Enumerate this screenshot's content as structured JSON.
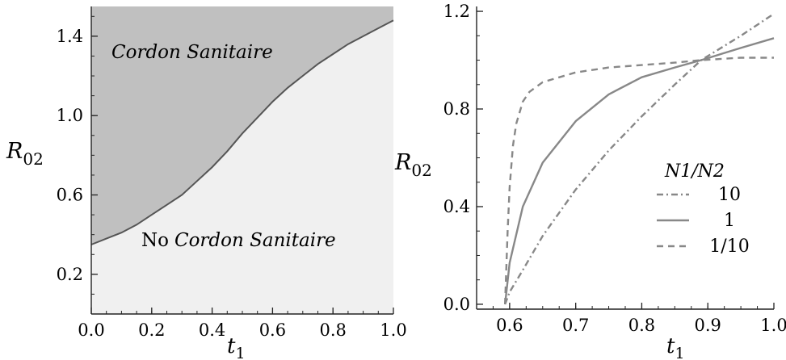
{
  "chart_data": [
    {
      "type": "area",
      "xlabel": "t",
      "xlabel_sub": "1",
      "ylabel": "R",
      "ylabel_sub": "02",
      "xlim": [
        0.0,
        1.0
      ],
      "ylim": [
        0.0,
        1.55
      ],
      "xticks": [
        "0.0",
        "0.2",
        "0.4",
        "0.6",
        "0.8",
        "1.0"
      ],
      "yticks": [
        "0.2",
        "0.6",
        "1.0",
        "1.4"
      ],
      "grid": false,
      "regions": [
        {
          "label": "Cordon Sanitaire",
          "fill": "#c0c0c0"
        },
        {
          "label_plain": "No",
          "label_italic": "Cordon Sanitaire",
          "fill": "#f0f0f0"
        }
      ],
      "boundary": {
        "color": "#555555",
        "x": [
          0.0,
          0.05,
          0.1,
          0.15,
          0.2,
          0.25,
          0.3,
          0.35,
          0.4,
          0.45,
          0.5,
          0.55,
          0.6,
          0.65,
          0.7,
          0.75,
          0.8,
          0.85,
          0.9,
          0.95,
          1.0
        ],
        "y": [
          0.35,
          0.38,
          0.41,
          0.45,
          0.5,
          0.55,
          0.6,
          0.67,
          0.74,
          0.82,
          0.91,
          0.99,
          1.07,
          1.14,
          1.2,
          1.26,
          1.31,
          1.36,
          1.4,
          1.44,
          1.48
        ]
      }
    },
    {
      "type": "line",
      "xlabel": "t",
      "xlabel_sub": "1",
      "ylabel": "R",
      "ylabel_sub": "02",
      "xlim": [
        0.55,
        1.0
      ],
      "ylim": [
        -0.02,
        1.22
      ],
      "xticks": [
        "0.6",
        "0.7",
        "0.8",
        "0.9",
        "1.0"
      ],
      "yticks": [
        "0.0",
        "0.4",
        "0.8",
        "1.2"
      ],
      "grid": false,
      "legend_title": "N1/N2",
      "legend_placement": "right",
      "series": [
        {
          "name": "10",
          "style": "dashdot",
          "color": "#888888",
          "x": [
            0.593,
            0.6,
            0.62,
            0.65,
            0.7,
            0.75,
            0.8,
            0.85,
            0.89,
            0.95,
            1.0
          ],
          "y": [
            0.0,
            0.05,
            0.14,
            0.28,
            0.47,
            0.63,
            0.77,
            0.9,
            1.0,
            1.1,
            1.19
          ]
        },
        {
          "name": "1",
          "style": "solid",
          "color": "#888888",
          "x": [
            0.593,
            0.6,
            0.62,
            0.65,
            0.7,
            0.75,
            0.8,
            0.85,
            0.89,
            0.95,
            1.0
          ],
          "y": [
            0.0,
            0.17,
            0.4,
            0.58,
            0.75,
            0.86,
            0.93,
            0.97,
            1.0,
            1.05,
            1.09
          ]
        },
        {
          "name": "1/10",
          "style": "dashed",
          "color": "#888888",
          "x": [
            0.593,
            0.597,
            0.6,
            0.605,
            0.61,
            0.62,
            0.63,
            0.65,
            0.7,
            0.75,
            0.8,
            0.85,
            0.89,
            0.95,
            1.0
          ],
          "y": [
            0.0,
            0.3,
            0.48,
            0.65,
            0.74,
            0.83,
            0.87,
            0.91,
            0.95,
            0.97,
            0.98,
            0.99,
            1.0,
            1.01,
            1.01
          ]
        }
      ]
    }
  ]
}
